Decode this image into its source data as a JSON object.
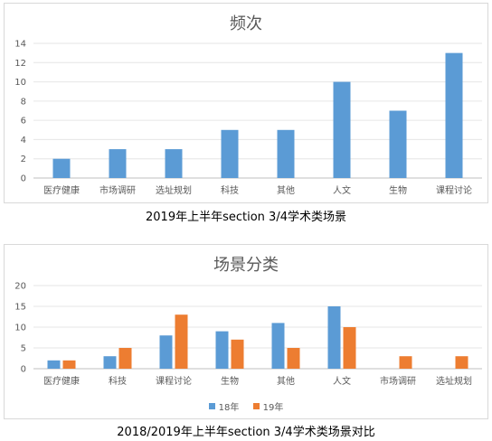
{
  "charts": [
    {
      "caption": "2019年上半年section 3/4学术类场景",
      "chart_data": {
        "type": "bar",
        "title": "频次",
        "categories": [
          "医疗健康",
          "市场调研",
          "选址规划",
          "科技",
          "其他",
          "人文",
          "生物",
          "课程讨论"
        ],
        "series": [
          {
            "name": "",
            "values": [
              2,
              3,
              3,
              5,
              5,
              10,
              7,
              13
            ],
            "color": "#5b9bd5"
          }
        ],
        "ylim": [
          0,
          14
        ],
        "yticks": [
          0,
          2,
          4,
          6,
          8,
          10,
          12,
          14
        ],
        "grid": true,
        "legend": "none"
      }
    },
    {
      "caption": "2018/2019年上半年section 3/4学术类场景对比",
      "chart_data": {
        "type": "bar",
        "title": "场景分类",
        "categories": [
          "医疗健康",
          "科技",
          "课程讨论",
          "生物",
          "其他",
          "人文",
          "市场调研",
          "选址规划"
        ],
        "series": [
          {
            "name": "18年",
            "values": [
              2,
              3,
              8,
              9,
              11,
              15,
              0,
              0
            ],
            "color": "#5b9bd5"
          },
          {
            "name": "19年",
            "values": [
              2,
              5,
              13,
              7,
              5,
              10,
              3,
              3
            ],
            "color": "#ed7d31"
          }
        ],
        "ylim": [
          0,
          20
        ],
        "yticks": [
          0,
          5,
          10,
          15,
          20
        ],
        "grid": true,
        "legend": "bottom"
      }
    }
  ]
}
